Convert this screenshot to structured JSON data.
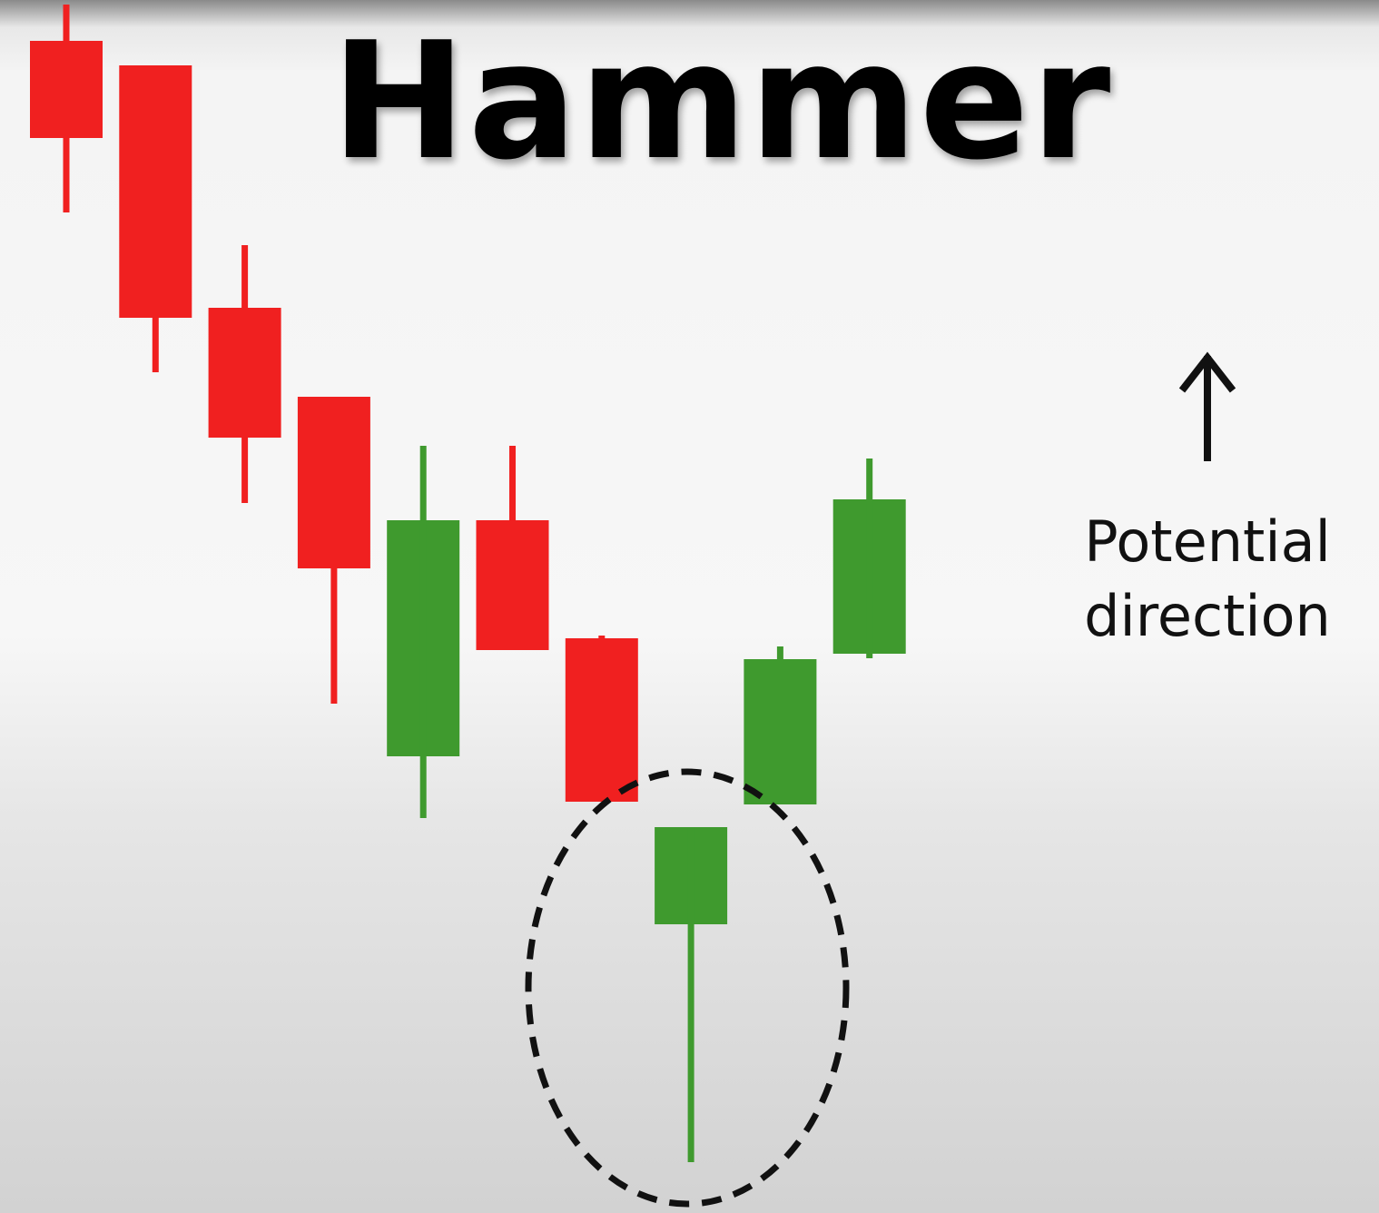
{
  "chart_data": {
    "type": "candlestick",
    "title": "Hammer",
    "annotation": "Potential direction",
    "open": [
      129.1,
      126.4,
      99.7,
      89.9,
      50.3,
      76.3,
      63.3,
      31.8,
      45.0,
      61.6
    ],
    "high": [
      133.1,
      126.4,
      106.6,
      89.9,
      84.5,
      84.5,
      63.6,
      42.5,
      62.4,
      83.1
    ],
    "low": [
      110.2,
      92.6,
      78.2,
      56.1,
      43.5,
      62.0,
      45.3,
      5.6,
      45.0,
      61.1
    ],
    "close": [
      118.4,
      98.6,
      85.4,
      71.0,
      76.3,
      62.0,
      45.3,
      42.5,
      61.0,
      78.6
    ],
    "up_color": "#3f9a2e",
    "down_color": "#f02020",
    "ylim": [
      0,
      133.6
    ]
  }
}
